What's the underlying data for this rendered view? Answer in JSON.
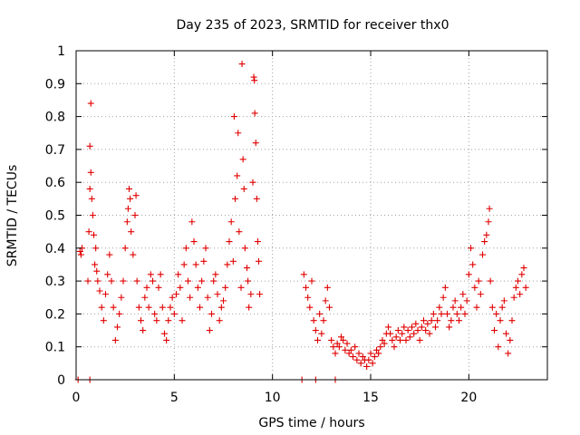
{
  "chart_data": {
    "type": "scatter",
    "title": "Day 235 of 2023, SRMTID for receiver thx0",
    "xlabel": "GPS time / hours",
    "ylabel": "SRMTID / TECUs",
    "xlim": [
      0,
      24
    ],
    "ylim": [
      0,
      1
    ],
    "xticks": [
      0,
      5,
      10,
      15,
      20
    ],
    "xtick_labels": [
      "0",
      "5",
      "10",
      "15",
      "20"
    ],
    "yticks": [
      0,
      0.1,
      0.2,
      0.3,
      0.4,
      0.5,
      0.6,
      0.7,
      0.8,
      0.9,
      1
    ],
    "ytick_labels": [
      "0",
      "0.1",
      "0.2",
      "0.3",
      "0.4",
      "0.5",
      "0.6",
      "0.7",
      "0.8",
      "0.9",
      "1"
    ],
    "grid": true,
    "marker": "+",
    "color": "#e00000",
    "series": [
      {
        "name": "SRMTID",
        "points": [
          [
            0.1,
            0.0
          ],
          [
            0.7,
            0.0
          ],
          [
            11.5,
            0.0
          ],
          [
            12.2,
            0.0
          ],
          [
            13.2,
            0.0
          ],
          [
            0.2,
            0.39
          ],
          [
            0.25,
            0.38
          ],
          [
            0.3,
            0.4
          ],
          [
            0.6,
            0.3
          ],
          [
            0.65,
            0.45
          ],
          [
            0.7,
            0.58
          ],
          [
            0.75,
            0.63
          ],
          [
            0.7,
            0.71
          ],
          [
            0.75,
            0.84
          ],
          [
            0.8,
            0.55
          ],
          [
            0.85,
            0.5
          ],
          [
            0.9,
            0.44
          ],
          [
            0.95,
            0.35
          ],
          [
            1.0,
            0.4
          ],
          [
            1.05,
            0.33
          ],
          [
            1.1,
            0.3
          ],
          [
            1.2,
            0.27
          ],
          [
            1.3,
            0.22
          ],
          [
            1.4,
            0.18
          ],
          [
            1.5,
            0.26
          ],
          [
            1.6,
            0.32
          ],
          [
            1.7,
            0.38
          ],
          [
            1.8,
            0.3
          ],
          [
            1.9,
            0.22
          ],
          [
            2.0,
            0.12
          ],
          [
            2.1,
            0.16
          ],
          [
            2.2,
            0.2
          ],
          [
            2.3,
            0.25
          ],
          [
            2.4,
            0.3
          ],
          [
            2.5,
            0.4
          ],
          [
            2.6,
            0.48
          ],
          [
            2.65,
            0.52
          ],
          [
            2.7,
            0.58
          ],
          [
            2.75,
            0.55
          ],
          [
            2.8,
            0.45
          ],
          [
            2.9,
            0.38
          ],
          [
            3.0,
            0.5
          ],
          [
            3.05,
            0.56
          ],
          [
            3.1,
            0.3
          ],
          [
            3.2,
            0.22
          ],
          [
            3.3,
            0.18
          ],
          [
            3.4,
            0.15
          ],
          [
            3.5,
            0.25
          ],
          [
            3.6,
            0.28
          ],
          [
            3.7,
            0.22
          ],
          [
            3.8,
            0.32
          ],
          [
            3.9,
            0.3
          ],
          [
            4.0,
            0.2
          ],
          [
            4.1,
            0.18
          ],
          [
            4.2,
            0.28
          ],
          [
            4.3,
            0.32
          ],
          [
            4.4,
            0.22
          ],
          [
            4.5,
            0.14
          ],
          [
            4.6,
            0.12
          ],
          [
            4.7,
            0.18
          ],
          [
            4.8,
            0.22
          ],
          [
            4.9,
            0.25
          ],
          [
            5.0,
            0.2
          ],
          [
            5.1,
            0.26
          ],
          [
            5.2,
            0.32
          ],
          [
            5.3,
            0.28
          ],
          [
            5.4,
            0.18
          ],
          [
            5.5,
            0.35
          ],
          [
            5.6,
            0.4
          ],
          [
            5.7,
            0.3
          ],
          [
            5.8,
            0.25
          ],
          [
            5.9,
            0.48
          ],
          [
            6.0,
            0.42
          ],
          [
            6.1,
            0.35
          ],
          [
            6.2,
            0.28
          ],
          [
            6.3,
            0.22
          ],
          [
            6.4,
            0.3
          ],
          [
            6.5,
            0.36
          ],
          [
            6.6,
            0.4
          ],
          [
            6.7,
            0.25
          ],
          [
            6.8,
            0.15
          ],
          [
            6.9,
            0.2
          ],
          [
            7.0,
            0.3
          ],
          [
            7.1,
            0.32
          ],
          [
            7.2,
            0.26
          ],
          [
            7.3,
            0.18
          ],
          [
            7.4,
            0.22
          ],
          [
            7.5,
            0.24
          ],
          [
            7.6,
            0.28
          ],
          [
            7.7,
            0.35
          ],
          [
            7.8,
            0.42
          ],
          [
            7.9,
            0.48
          ],
          [
            8.0,
            0.36
          ],
          [
            8.05,
            0.8
          ],
          [
            8.1,
            0.55
          ],
          [
            8.2,
            0.62
          ],
          [
            8.25,
            0.75
          ],
          [
            8.3,
            0.45
          ],
          [
            8.4,
            0.28
          ],
          [
            8.45,
            0.96
          ],
          [
            8.5,
            0.67
          ],
          [
            8.55,
            0.58
          ],
          [
            8.6,
            0.4
          ],
          [
            8.7,
            0.34
          ],
          [
            8.75,
            0.3
          ],
          [
            8.8,
            0.22
          ],
          [
            8.9,
            0.26
          ],
          [
            9.0,
            0.6
          ],
          [
            9.05,
            0.92
          ],
          [
            9.08,
            0.91
          ],
          [
            9.1,
            0.81
          ],
          [
            9.15,
            0.72
          ],
          [
            9.2,
            0.55
          ],
          [
            9.25,
            0.42
          ],
          [
            9.3,
            0.36
          ],
          [
            9.35,
            0.26
          ],
          [
            11.6,
            0.32
          ],
          [
            11.7,
            0.28
          ],
          [
            11.8,
            0.25
          ],
          [
            11.9,
            0.22
          ],
          [
            12.0,
            0.3
          ],
          [
            12.1,
            0.18
          ],
          [
            12.2,
            0.15
          ],
          [
            12.3,
            0.12
          ],
          [
            12.4,
            0.2
          ],
          [
            12.5,
            0.14
          ],
          [
            12.6,
            0.18
          ],
          [
            12.7,
            0.24
          ],
          [
            12.8,
            0.28
          ],
          [
            12.9,
            0.22
          ],
          [
            13.0,
            0.12
          ],
          [
            13.1,
            0.1
          ],
          [
            13.2,
            0.08
          ],
          [
            13.3,
            0.11
          ],
          [
            13.4,
            0.1
          ],
          [
            13.5,
            0.13
          ],
          [
            13.6,
            0.12
          ],
          [
            13.7,
            0.09
          ],
          [
            13.8,
            0.11
          ],
          [
            13.9,
            0.08
          ],
          [
            14.0,
            0.09
          ],
          [
            14.1,
            0.07
          ],
          [
            14.2,
            0.1
          ],
          [
            14.3,
            0.06
          ],
          [
            14.4,
            0.08
          ],
          [
            14.5,
            0.05
          ],
          [
            14.6,
            0.07
          ],
          [
            14.7,
            0.06
          ],
          [
            14.8,
            0.04
          ],
          [
            14.9,
            0.06
          ],
          [
            15.0,
            0.08
          ],
          [
            15.1,
            0.05
          ],
          [
            15.2,
            0.07
          ],
          [
            15.3,
            0.09
          ],
          [
            15.4,
            0.08
          ],
          [
            15.5,
            0.1
          ],
          [
            15.6,
            0.12
          ],
          [
            15.7,
            0.11
          ],
          [
            15.8,
            0.14
          ],
          [
            15.9,
            0.16
          ],
          [
            16.0,
            0.14
          ],
          [
            16.1,
            0.12
          ],
          [
            16.2,
            0.1
          ],
          [
            16.3,
            0.13
          ],
          [
            16.4,
            0.15
          ],
          [
            16.5,
            0.12
          ],
          [
            16.6,
            0.14
          ],
          [
            16.7,
            0.16
          ],
          [
            16.8,
            0.12
          ],
          [
            16.9,
            0.15
          ],
          [
            17.0,
            0.13
          ],
          [
            17.1,
            0.16
          ],
          [
            17.2,
            0.14
          ],
          [
            17.3,
            0.17
          ],
          [
            17.4,
            0.15
          ],
          [
            17.5,
            0.12
          ],
          [
            17.6,
            0.16
          ],
          [
            17.7,
            0.18
          ],
          [
            17.8,
            0.15
          ],
          [
            17.9,
            0.17
          ],
          [
            18.0,
            0.14
          ],
          [
            18.1,
            0.18
          ],
          [
            18.2,
            0.2
          ],
          [
            18.3,
            0.16
          ],
          [
            18.4,
            0.18
          ],
          [
            18.5,
            0.22
          ],
          [
            18.6,
            0.2
          ],
          [
            18.7,
            0.25
          ],
          [
            18.8,
            0.28
          ],
          [
            18.9,
            0.2
          ],
          [
            19.0,
            0.16
          ],
          [
            19.1,
            0.18
          ],
          [
            19.2,
            0.22
          ],
          [
            19.3,
            0.24
          ],
          [
            19.4,
            0.2
          ],
          [
            19.5,
            0.18
          ],
          [
            19.6,
            0.22
          ],
          [
            19.7,
            0.26
          ],
          [
            19.8,
            0.2
          ],
          [
            19.9,
            0.24
          ],
          [
            20.0,
            0.32
          ],
          [
            20.1,
            0.4
          ],
          [
            20.2,
            0.35
          ],
          [
            20.3,
            0.28
          ],
          [
            20.4,
            0.22
          ],
          [
            20.5,
            0.3
          ],
          [
            20.6,
            0.26
          ],
          [
            20.7,
            0.38
          ],
          [
            20.8,
            0.42
          ],
          [
            20.9,
            0.44
          ],
          [
            21.0,
            0.48
          ],
          [
            21.05,
            0.52
          ],
          [
            21.1,
            0.3
          ],
          [
            21.2,
            0.22
          ],
          [
            21.3,
            0.15
          ],
          [
            21.4,
            0.2
          ],
          [
            21.5,
            0.1
          ],
          [
            21.6,
            0.18
          ],
          [
            21.7,
            0.22
          ],
          [
            21.8,
            0.24
          ],
          [
            21.9,
            0.14
          ],
          [
            22.0,
            0.08
          ],
          [
            22.1,
            0.12
          ],
          [
            22.2,
            0.18
          ],
          [
            22.3,
            0.25
          ],
          [
            22.4,
            0.28
          ],
          [
            22.5,
            0.3
          ],
          [
            22.6,
            0.26
          ],
          [
            22.7,
            0.32
          ],
          [
            22.8,
            0.34
          ],
          [
            22.9,
            0.28
          ]
        ]
      }
    ]
  }
}
